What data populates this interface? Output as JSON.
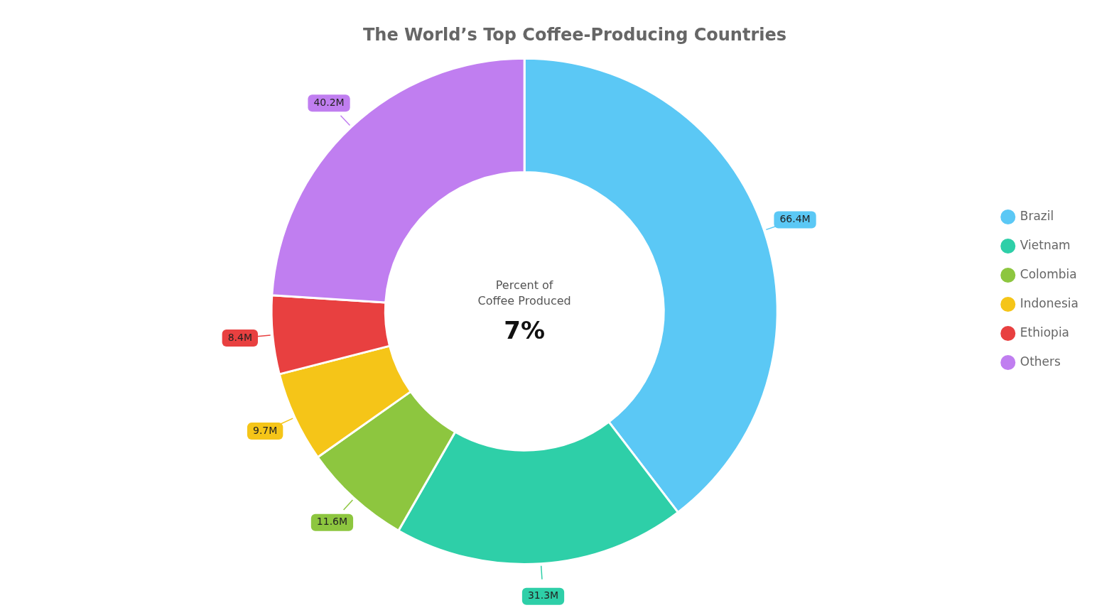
{
  "chart_data": {
    "type": "pie",
    "title": "The World’s Top Coffee-Producing Countries",
    "categories": [
      "Brazil",
      "Vietnam",
      "Colombia",
      "Indonesia",
      "Ethiopia",
      "Others"
    ],
    "values": [
      66.4,
      31.3,
      11.6,
      9.7,
      8.4,
      40.2
    ],
    "value_labels": [
      "66.4M",
      "31.3M",
      "11.6M",
      "9.7M",
      "8.4M",
      "40.2M"
    ],
    "colors": [
      "#5BC8F5",
      "#2ECFA8",
      "#8DC63F",
      "#F5C518",
      "#E84040",
      "#C07EF0"
    ],
    "annotations": [
      "Percent of",
      "Coffee Produced",
      "7%"
    ],
    "data_labels": true,
    "legend": "right"
  }
}
